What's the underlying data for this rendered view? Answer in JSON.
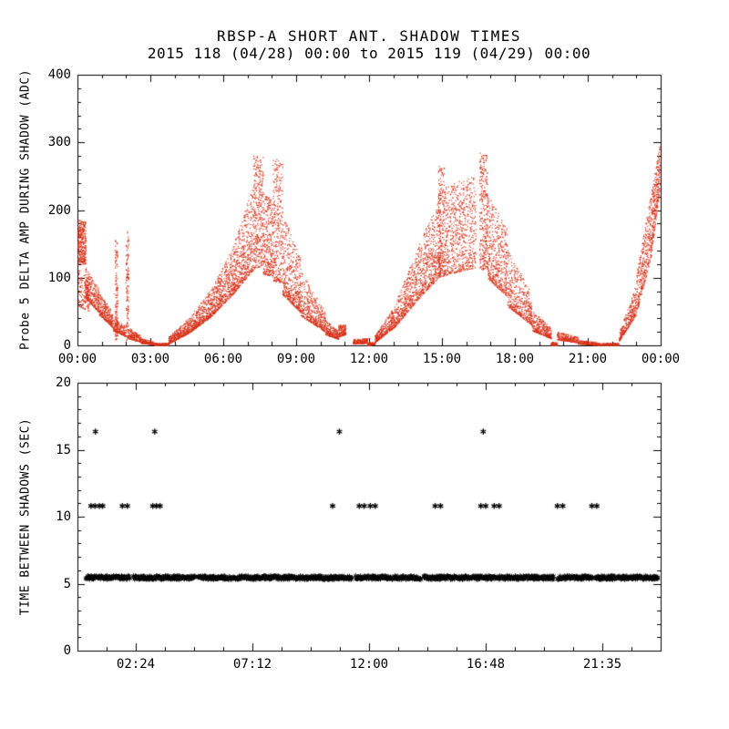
{
  "figure": {
    "title": "RBSP-A SHORT ANT. SHADOW TIMES",
    "subtitle": "2015 118 (04/28) 00:00 to 2015 119 (04/29) 00:00"
  },
  "chart_data": [
    {
      "type": "scatter",
      "panel": "top",
      "title": "RBSP-A SHORT ANT. SHADOW TIMES",
      "subtitle": "2015 118 (04/28) 00:00 to 2015 119 (04/29) 00:00",
      "ylabel": "Probe 5 DELTA AMP DURING SHADOW (ADC)",
      "ylim": [
        0,
        400
      ],
      "yticks": [
        0,
        100,
        200,
        300,
        400
      ],
      "ytick_labels": [
        "0",
        "100",
        "200",
        "300",
        "400"
      ],
      "y_minor_step": 20,
      "xlim_hours": [
        0,
        24
      ],
      "xticks_hours": [
        0,
        3,
        6,
        9,
        12,
        15,
        18,
        21,
        24
      ],
      "xtick_labels": [
        "00:00",
        "03:00",
        "06:00",
        "09:00",
        "12:00",
        "15:00",
        "18:00",
        "21:00",
        "00:00"
      ],
      "x_minor_step_hours": 1,
      "marker": "dot",
      "color": "#d8341c",
      "grid": false,
      "point_cloud_segments": {
        "format": [
          "t_start_h",
          "t_end_h",
          "n_points",
          "base_adc_start",
          "base_adc_end",
          "spread_adc_start",
          "spread_adc_end",
          "density_exponent"
        ],
        "segments": [
          [
            0.02,
            0.35,
            340,
            118,
            120,
            68,
            62,
            1.0
          ],
          [
            0.05,
            0.5,
            140,
            58,
            50,
            55,
            45,
            1.3
          ],
          [
            0.3,
            0.9,
            300,
            72,
            48,
            45,
            35,
            1.9
          ],
          [
            0.9,
            1.45,
            260,
            45,
            27,
            32,
            22,
            1.9
          ],
          [
            1.55,
            1.66,
            130,
            8,
            8,
            150,
            142,
            1.1
          ],
          [
            1.45,
            2.0,
            200,
            22,
            13,
            20,
            15,
            1.9
          ],
          [
            2.0,
            2.12,
            130,
            5,
            5,
            168,
            160,
            1.1
          ],
          [
            2.1,
            2.6,
            180,
            10,
            5,
            16,
            10,
            1.9
          ],
          [
            2.6,
            3.15,
            170,
            3,
            1,
            8,
            4,
            1.8
          ],
          [
            3.15,
            3.75,
            160,
            0,
            0,
            3,
            3,
            1.5
          ],
          [
            3.75,
            4.6,
            360,
            2,
            18,
            10,
            22,
            1.9
          ],
          [
            4.6,
            5.5,
            420,
            18,
            42,
            22,
            40,
            1.9
          ],
          [
            5.5,
            6.4,
            470,
            42,
            75,
            40,
            70,
            1.8
          ],
          [
            6.4,
            7.25,
            520,
            75,
            112,
            70,
            125,
            1.6
          ],
          [
            7.25,
            7.65,
            340,
            112,
            118,
            168,
            160,
            1.3
          ],
          [
            7.65,
            8.05,
            280,
            105,
            102,
            120,
            112,
            1.5
          ],
          [
            8.05,
            8.45,
            300,
            95,
            92,
            185,
            175,
            1.3
          ],
          [
            8.45,
            9.2,
            460,
            75,
            48,
            120,
            80,
            1.9
          ],
          [
            9.2,
            10.2,
            430,
            44,
            20,
            65,
            30,
            2.1
          ],
          [
            10.2,
            10.75,
            220,
            16,
            9,
            22,
            12,
            2.0
          ],
          [
            10.75,
            11.05,
            150,
            12,
            16,
            18,
            14,
            1.4
          ],
          [
            11.35,
            11.95,
            200,
            2,
            3,
            7,
            7,
            1.6
          ],
          [
            11.95,
            12.25,
            120,
            0,
            1,
            3,
            4,
            1.6
          ],
          [
            12.25,
            13.1,
            360,
            4,
            28,
            10,
            32,
            1.9
          ],
          [
            13.1,
            14.2,
            500,
            28,
            75,
            35,
            85,
            1.7
          ],
          [
            14.2,
            14.95,
            430,
            75,
            102,
            85,
            120,
            1.6
          ],
          [
            14.85,
            15.1,
            240,
            98,
            103,
            168,
            162,
            1.3
          ],
          [
            15.1,
            16.4,
            680,
            103,
            115,
            130,
            140,
            1.5
          ],
          [
            16.55,
            16.9,
            310,
            112,
            112,
            175,
            170,
            1.3
          ],
          [
            16.9,
            17.7,
            460,
            98,
            72,
            125,
            100,
            1.7
          ],
          [
            17.7,
            18.7,
            440,
            58,
            30,
            85,
            45,
            1.9
          ],
          [
            18.7,
            19.5,
            310,
            22,
            10,
            30,
            16,
            2.0
          ],
          [
            19.5,
            19.75,
            90,
            0,
            0,
            5,
            4,
            1.5
          ],
          [
            19.75,
            20.6,
            240,
            8,
            4,
            12,
            8,
            1.8
          ],
          [
            20.6,
            21.4,
            200,
            2,
            0,
            6,
            4,
            1.7
          ],
          [
            21.4,
            22.3,
            190,
            0,
            0,
            3,
            3,
            1.5
          ],
          [
            22.3,
            23.0,
            290,
            6,
            45,
            12,
            45,
            1.7
          ],
          [
            23.0,
            23.6,
            340,
            45,
            128,
            55,
            95,
            1.5
          ],
          [
            23.6,
            23.98,
            310,
            128,
            232,
            92,
            66,
            1.4
          ]
        ]
      }
    },
    {
      "type": "scatter",
      "panel": "bottom",
      "ylabel": "TIME BETWEEN SHADOWS (SEC)",
      "ylim": [
        0,
        20
      ],
      "yticks": [
        0,
        5,
        10,
        15,
        20
      ],
      "ytick_labels": [
        "0",
        "5",
        "10",
        "15",
        "20"
      ],
      "y_minor_step": 1,
      "xlim_hours": [
        0,
        24
      ],
      "xticks_hours": [
        2.4,
        7.2,
        12,
        16.8,
        21.6
      ],
      "xtick_labels": [
        "02:24",
        "07:12",
        "12:00",
        "16:48",
        "21:35"
      ],
      "x_minor_step_hours": 1.2,
      "marker": "asterisk",
      "color": "#000000",
      "series": [
        {
          "name": "shadow-interval-band",
          "style": "dense-band",
          "y_sec": 5.45,
          "y_jitter_sec": 0.14,
          "time_segments_hours": [
            [
              0.35,
              2.15
            ],
            [
              2.3,
              4.85
            ],
            [
              4.95,
              11.3
            ],
            [
              11.45,
              14.15
            ],
            [
              14.25,
              19.6
            ],
            [
              19.75,
              21.2
            ],
            [
              21.3,
              23.9
            ]
          ]
        },
        {
          "name": "shadow-interval-double",
          "style": "points",
          "y_sec": 10.8,
          "times_hours": [
            0.56,
            0.72,
            0.9,
            1.04,
            1.85,
            2.05,
            3.1,
            3.25,
            3.4,
            10.5,
            11.6,
            11.8,
            12.05,
            12.25,
            14.72,
            14.94,
            16.6,
            16.8,
            17.15,
            17.35,
            19.75,
            19.97,
            21.17,
            21.37
          ]
        },
        {
          "name": "shadow-interval-triple",
          "style": "points",
          "y_sec": 16.35,
          "times_hours": [
            0.74,
            3.18,
            10.78,
            16.7
          ]
        }
      ]
    }
  ]
}
